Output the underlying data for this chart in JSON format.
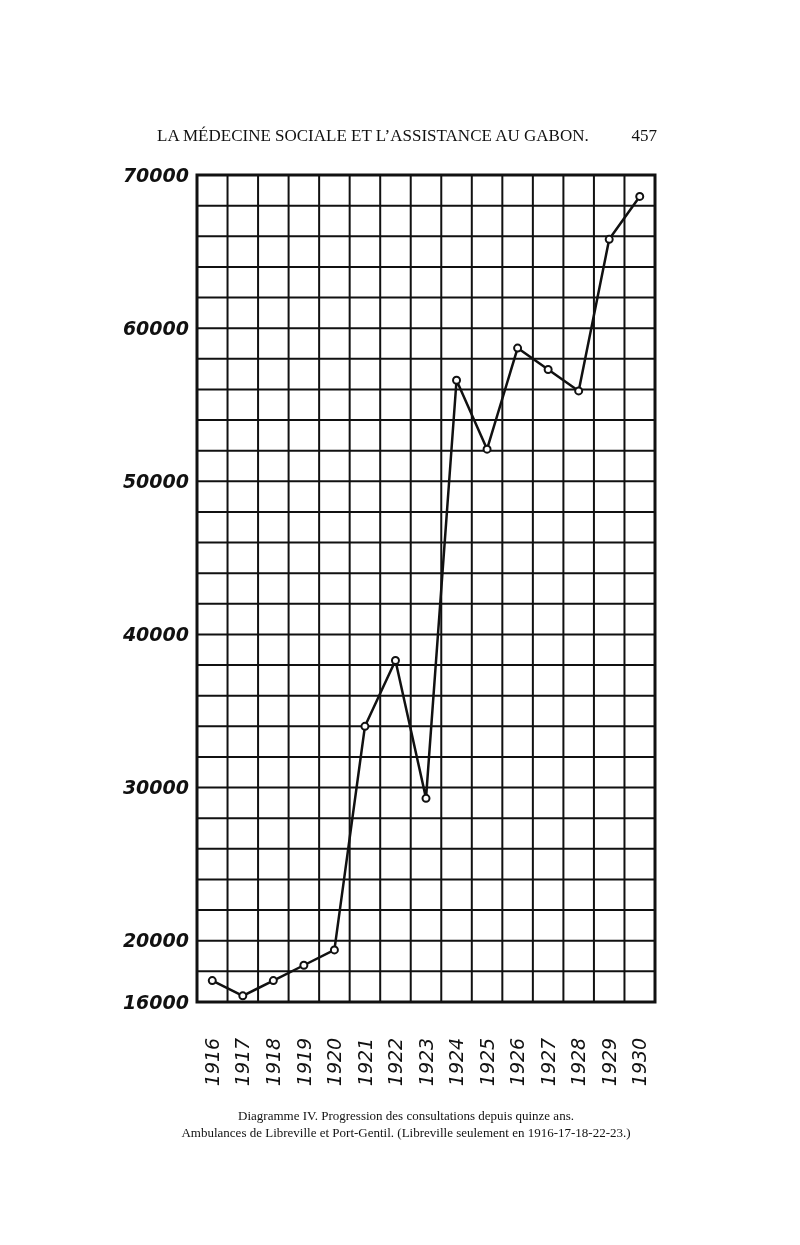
{
  "chart_data": {
    "type": "line",
    "title": "LA MÉDECINE SOCIALE ET L’ASSISTANCE AU GABON.",
    "annotations": [
      "457",
      "Diagramme IV.  Progression des consultations depuis quinze ans.",
      "Ambulances de Libreville et Port-Gentil.  (Libreville seulement en 1916-17-18-22-23.)"
    ],
    "categories": [
      "1916",
      "1917",
      "1918",
      "1919",
      "1920",
      "1921",
      "1922",
      "1923",
      "1924",
      "1925",
      "1926",
      "1927",
      "1928",
      "1929",
      "1930"
    ],
    "series": [
      {
        "color": "#111111",
        "values": [
          17400,
          16400,
          17400,
          18400,
          19400,
          34000,
          38300,
          29300,
          56600,
          52100,
          58700,
          57300,
          55900,
          65800,
          68600
        ]
      }
    ],
    "ylim": [
      16000,
      70000
    ],
    "yticks": [
      16000,
      {
        "value": 18000,
        "label": null
      },
      20000,
      {
        "value": 22000,
        "label": null
      },
      {
        "value": 24000,
        "label": null
      },
      {
        "value": 26000,
        "label": null
      },
      {
        "value": 28000,
        "label": null
      },
      30000,
      {
        "value": 32000,
        "label": null
      },
      {
        "value": 34000,
        "label": null
      },
      {
        "value": 36000,
        "label": null
      },
      {
        "value": 38000,
        "label": null
      },
      40000,
      {
        "value": 42000,
        "label": null
      },
      {
        "value": 44000,
        "label": null
      },
      {
        "value": 46000,
        "label": null
      },
      {
        "value": 48000,
        "label": null
      },
      50000,
      {
        "value": 52000,
        "label": null
      },
      {
        "value": 54000,
        "label": null
      },
      {
        "value": 56000,
        "label": null
      },
      {
        "value": 58000,
        "label": null
      },
      60000,
      {
        "value": 62000,
        "label": null
      },
      {
        "value": 64000,
        "label": null
      },
      {
        "value": 66000,
        "label": null
      },
      {
        "value": 68000,
        "label": null
      },
      70000
    ],
    "grid": true,
    "marker": "circle",
    "line_style": "solid"
  }
}
